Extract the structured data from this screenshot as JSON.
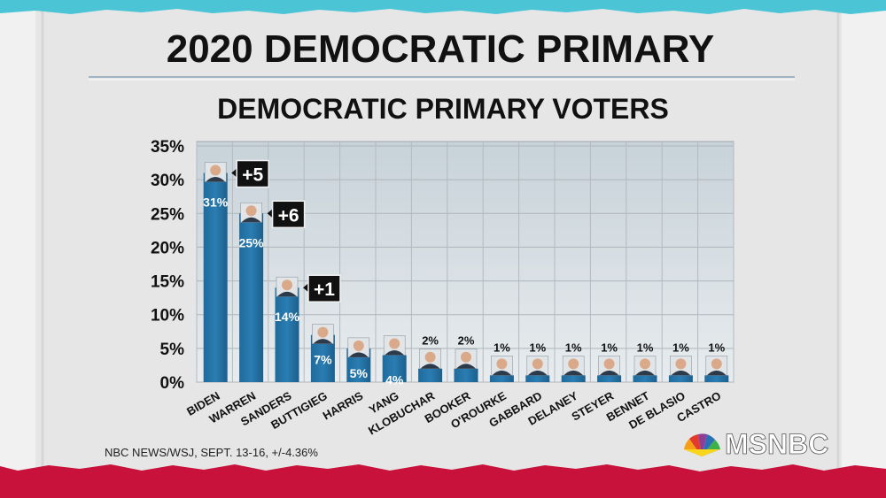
{
  "header": {
    "title": "2020 DEMOCRATIC PRIMARY",
    "subtitle": "DEMOCRATIC PRIMARY VOTERS"
  },
  "footer": {
    "source": "NBC NEWS/WSJ, SEPT. 13-16, +/-4.36%",
    "network": "MSNBC"
  },
  "colors": {
    "bar": "#2471a3",
    "bar_dark": "#1b5a85",
    "plot_bg": "#d8dcdf",
    "grid": "#b9bec2",
    "top_band": "#4bc4d6",
    "bottom_band": "#c8123c"
  },
  "chart_data": {
    "type": "bar",
    "title": "DEMOCRATIC PRIMARY VOTERS",
    "categories": [
      "BIDEN",
      "WARREN",
      "SANDERS",
      "BUTTIGIEG",
      "HARRIS",
      "YANG",
      "KLOBUCHAR",
      "BOOKER",
      "O'ROURKE",
      "GABBARD",
      "DELANEY",
      "STEYER",
      "BENNET",
      "DE BLASIO",
      "CASTRO"
    ],
    "values": [
      31,
      25,
      14,
      7,
      5,
      4,
      2,
      2,
      1,
      1,
      1,
      1,
      1,
      1,
      1
    ],
    "value_labels": [
      "31%",
      "25%",
      "14%",
      "7%",
      "5%",
      "4%",
      "2%",
      "2%",
      "1%",
      "1%",
      "1%",
      "1%",
      "1%",
      "1%",
      "1%"
    ],
    "changes": [
      {
        "candidate": "BIDEN",
        "label": "+5"
      },
      {
        "candidate": "WARREN",
        "label": "+6"
      },
      {
        "candidate": "SANDERS",
        "label": "+1"
      }
    ],
    "y_ticks": [
      0,
      5,
      10,
      15,
      20,
      25,
      30,
      35
    ],
    "y_tick_labels": [
      "0%",
      "5%",
      "10%",
      "15%",
      "20%",
      "25%",
      "30%",
      "35%"
    ],
    "ylim": [
      0,
      35
    ],
    "grid": true,
    "xlabel": "",
    "ylabel": ""
  }
}
